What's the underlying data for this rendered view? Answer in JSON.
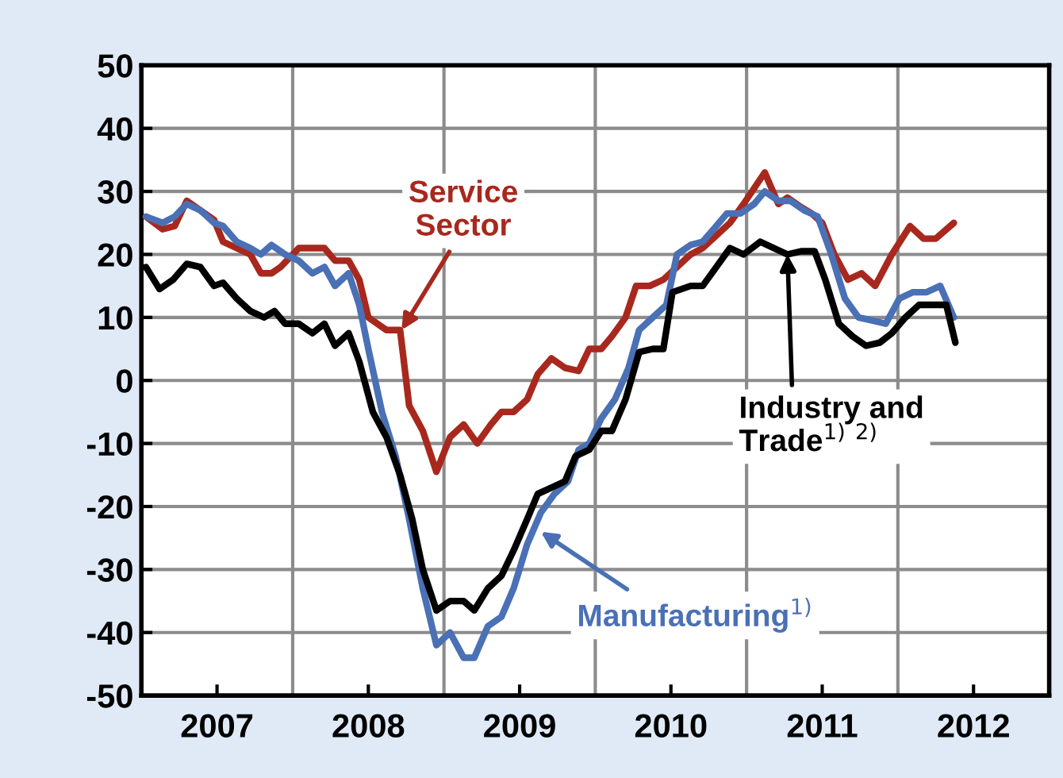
{
  "chart_data": {
    "type": "line",
    "series": [
      {
        "color": "#a8281e",
        "x": [
          2007.03,
          2007.14,
          2007.22,
          2007.3,
          2007.39,
          2007.48,
          2007.54,
          2007.63,
          2007.72,
          2007.79,
          2007.86,
          2007.92,
          2008.04,
          2008.13,
          2008.21,
          2008.28,
          2008.37,
          2008.44,
          2008.5,
          2008.62,
          2008.71,
          2008.77,
          2008.86,
          2008.95,
          2009.04,
          2009.13,
          2009.22,
          2009.31,
          2009.38,
          2009.46,
          2009.55,
          2009.62,
          2009.71,
          2009.8,
          2009.89,
          2009.96,
          2010.04,
          2010.11,
          2010.2,
          2010.27,
          2010.36,
          2010.45,
          2010.54,
          2010.63,
          2010.71,
          2010.8,
          2010.89,
          2010.98,
          2011.12,
          2011.21,
          2011.27,
          2011.36,
          2011.43,
          2011.5,
          2011.58,
          2011.67,
          2011.76,
          2011.85,
          2011.96,
          2012.08,
          2012.17,
          2012.25,
          2012.37
        ],
        "values": [
          26,
          24,
          24.5,
          28.5,
          27,
          25.5,
          22,
          21,
          20,
          17,
          17,
          18,
          21,
          21,
          21,
          19,
          19,
          16,
          10,
          8,
          8,
          -4,
          -8,
          -14.5,
          -9,
          -7,
          -10,
          -7,
          -5,
          -5,
          -3,
          1,
          3.5,
          2,
          1.5,
          5,
          5,
          7,
          10,
          15,
          15,
          16,
          18,
          20,
          21,
          23,
          25,
          28,
          33,
          28,
          29,
          27.5,
          26.5,
          25,
          20,
          16,
          17,
          15,
          20,
          24.5,
          22.5,
          22.5,
          25
        ]
      },
      {
        "color": "#4a70b5",
        "x": [
          2007.03,
          2007.14,
          2007.22,
          2007.3,
          2007.39,
          2007.48,
          2007.54,
          2007.63,
          2007.72,
          2007.79,
          2007.86,
          2007.95,
          2008.04,
          2008.13,
          2008.21,
          2008.28,
          2008.37,
          2008.44,
          2008.5,
          2008.59,
          2008.68,
          2008.77,
          2008.86,
          2008.95,
          2009.04,
          2009.13,
          2009.2,
          2009.29,
          2009.38,
          2009.46,
          2009.55,
          2009.64,
          2009.73,
          2009.82,
          2009.89,
          2009.96,
          2010.04,
          2010.13,
          2010.22,
          2010.29,
          2010.38,
          2010.47,
          2010.54,
          2010.63,
          2010.71,
          2010.8,
          2010.87,
          2010.96,
          2011.05,
          2011.12,
          2011.21,
          2011.29,
          2011.38,
          2011.47,
          2011.56,
          2011.65,
          2011.74,
          2011.83,
          2011.92,
          2012.01,
          2012.1,
          2012.19,
          2012.28,
          2012.37
        ],
        "values": [
          26,
          25,
          26,
          28,
          27,
          25,
          24.5,
          22,
          21,
          20,
          21.5,
          20,
          19,
          17,
          18,
          15,
          17,
          12,
          5,
          -5,
          -12,
          -22,
          -33,
          -42,
          -40,
          -44,
          -44,
          -39,
          -37.5,
          -33,
          -26,
          -21,
          -18,
          -16,
          -11,
          -10,
          -6,
          -3,
          2,
          8,
          10,
          12,
          20,
          21.5,
          22,
          24.5,
          26.5,
          26.5,
          28,
          30,
          28.5,
          28.5,
          27,
          26,
          20,
          13,
          10,
          9.5,
          9,
          13,
          14,
          14,
          15,
          10
        ]
      },
      {
        "color": "#000000",
        "x": [
          2007.03,
          2007.12,
          2007.21,
          2007.3,
          2007.39,
          2007.48,
          2007.54,
          2007.63,
          2007.72,
          2007.81,
          2007.88,
          2007.95,
          2008.04,
          2008.13,
          2008.21,
          2008.28,
          2008.37,
          2008.44,
          2008.53,
          2008.62,
          2008.71,
          2008.79,
          2008.86,
          2008.95,
          2009.04,
          2009.13,
          2009.2,
          2009.29,
          2009.38,
          2009.46,
          2009.55,
          2009.62,
          2009.71,
          2009.8,
          2009.87,
          2009.96,
          2010.04,
          2010.11,
          2010.2,
          2010.29,
          2010.38,
          2010.45,
          2010.51,
          2010.63,
          2010.71,
          2010.8,
          2010.89,
          2010.98,
          2011.09,
          2011.18,
          2011.27,
          2011.36,
          2011.45,
          2011.52,
          2011.61,
          2011.7,
          2011.79,
          2011.88,
          2011.96,
          2012.05,
          2012.14,
          2012.25,
          2012.32,
          2012.38
        ],
        "values": [
          18,
          14.5,
          16,
          18.5,
          18,
          15,
          15.5,
          13,
          11,
          10,
          11,
          9,
          9,
          7.5,
          9,
          5.5,
          7.5,
          3,
          -5,
          -9,
          -15,
          -22,
          -30,
          -36.5,
          -35,
          -35,
          -36.5,
          -33,
          -31,
          -27,
          -22,
          -18,
          -17,
          -16,
          -12,
          -11,
          -8,
          -8,
          -3,
          4.5,
          5,
          5,
          14,
          15,
          15,
          18,
          21,
          20,
          22,
          21,
          20,
          20.5,
          20.5,
          16,
          9,
          7,
          5.5,
          6,
          7.5,
          10,
          12,
          12,
          12,
          6
        ]
      }
    ],
    "annotations": [
      {
        "text": "Service\nSector",
        "x": 2008.72,
        "y": 8
      },
      {
        "text": "Manufacturing$^{1)}$",
        "x": 2009.64,
        "y": -24
      },
      {
        "text": "Industry and\nTrade$^{1)}$ $^{2)}$",
        "x": 2011.27,
        "y": 20
      }
    ],
    "xlim": [
      2007,
      2013
    ],
    "xticks": [
      {
        "value": 2007.5,
        "label": "2007"
      },
      {
        "value": 2008,
        "label": null
      },
      {
        "value": 2008.5,
        "label": "2008"
      },
      {
        "value": 2009,
        "label": null
      },
      {
        "value": 2009.5,
        "label": "2009"
      },
      {
        "value": 2010,
        "label": null
      },
      {
        "value": 2010.5,
        "label": "2010"
      },
      {
        "value": 2011,
        "label": null
      },
      {
        "value": 2011.5,
        "label": "2011"
      },
      {
        "value": 2012,
        "label": null
      },
      {
        "value": 2012.5,
        "label": "2012"
      }
    ],
    "ylim": [
      -50,
      50
    ],
    "yticks": [
      -50,
      -40,
      -30,
      -20,
      -10,
      0,
      10,
      20,
      30,
      40,
      50
    ],
    "grid": true,
    "legend": false
  }
}
